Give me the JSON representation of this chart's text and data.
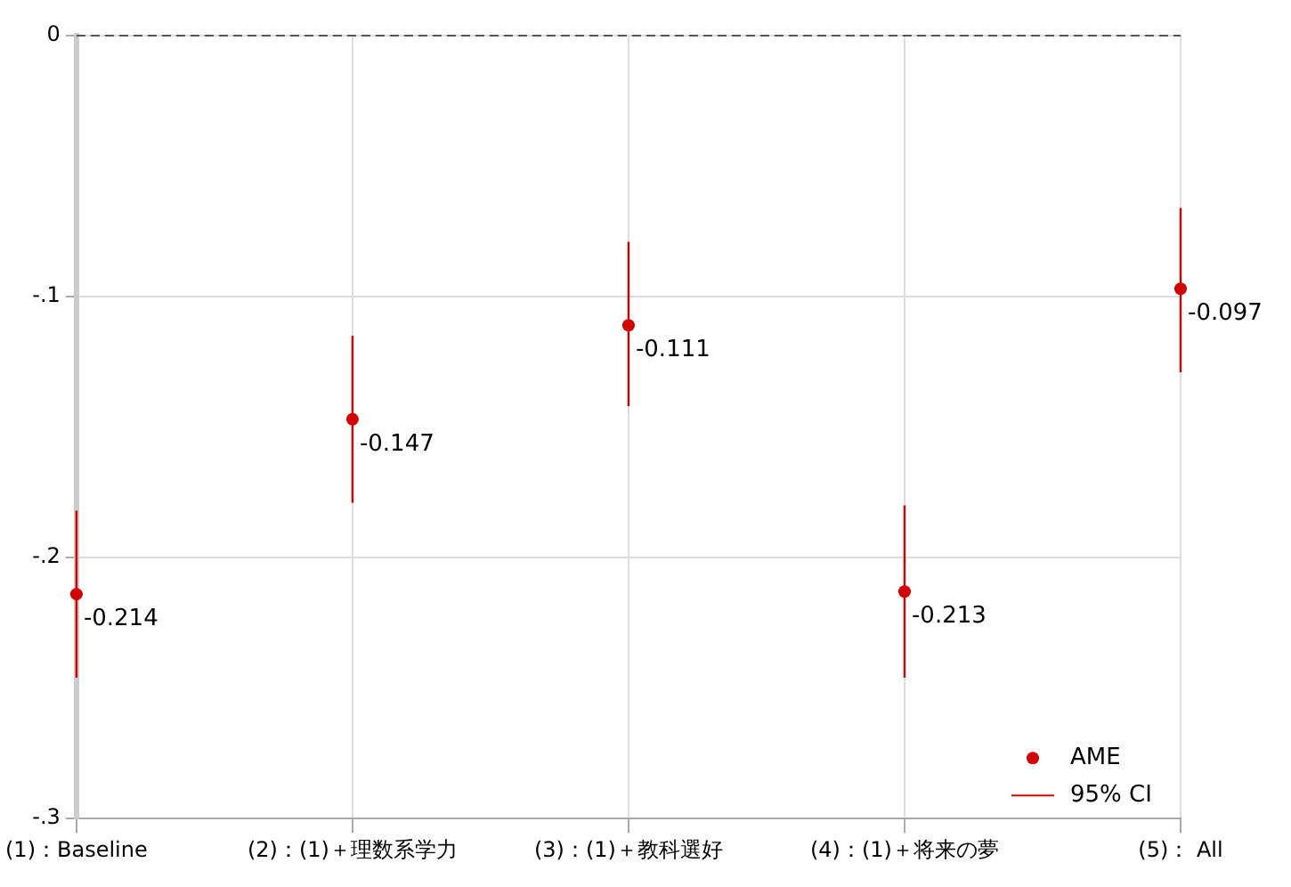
{
  "chart_data": {
    "type": "scatter",
    "categories": [
      "(1)：Baseline",
      "(2)：(1)＋理数系学力",
      "(3)：(1)＋教科選好",
      "(4)：(1)＋将来の夢",
      "(5)： All"
    ],
    "series": [
      {
        "name": "AME",
        "color": "#d40000",
        "values": [
          -0.214,
          -0.147,
          -0.111,
          -0.213,
          -0.097
        ],
        "errors": [
          [
            -0.246,
            -0.182
          ],
          [
            -0.179,
            -0.115
          ],
          [
            -0.142,
            -0.079
          ],
          [
            -0.246,
            -0.18
          ],
          [
            -0.129,
            -0.066
          ]
        ]
      }
    ],
    "ylim": [
      -0.3,
      0
    ],
    "yticks": [
      {
        "value": 0,
        "label": "0"
      },
      {
        "value": -0.1,
        "label": "-.1"
      },
      {
        "value": -0.2,
        "label": "-.2"
      },
      {
        "value": -0.3,
        "label": "-.3"
      }
    ],
    "ref_lines": [
      {
        "axis": "y",
        "value": 0,
        "color": "#555555",
        "line_style": "dashed"
      }
    ],
    "annotations": [
      "95% CI"
    ],
    "data_labels": true,
    "grid": true,
    "legend": "bottom right",
    "marker": "circle"
  }
}
